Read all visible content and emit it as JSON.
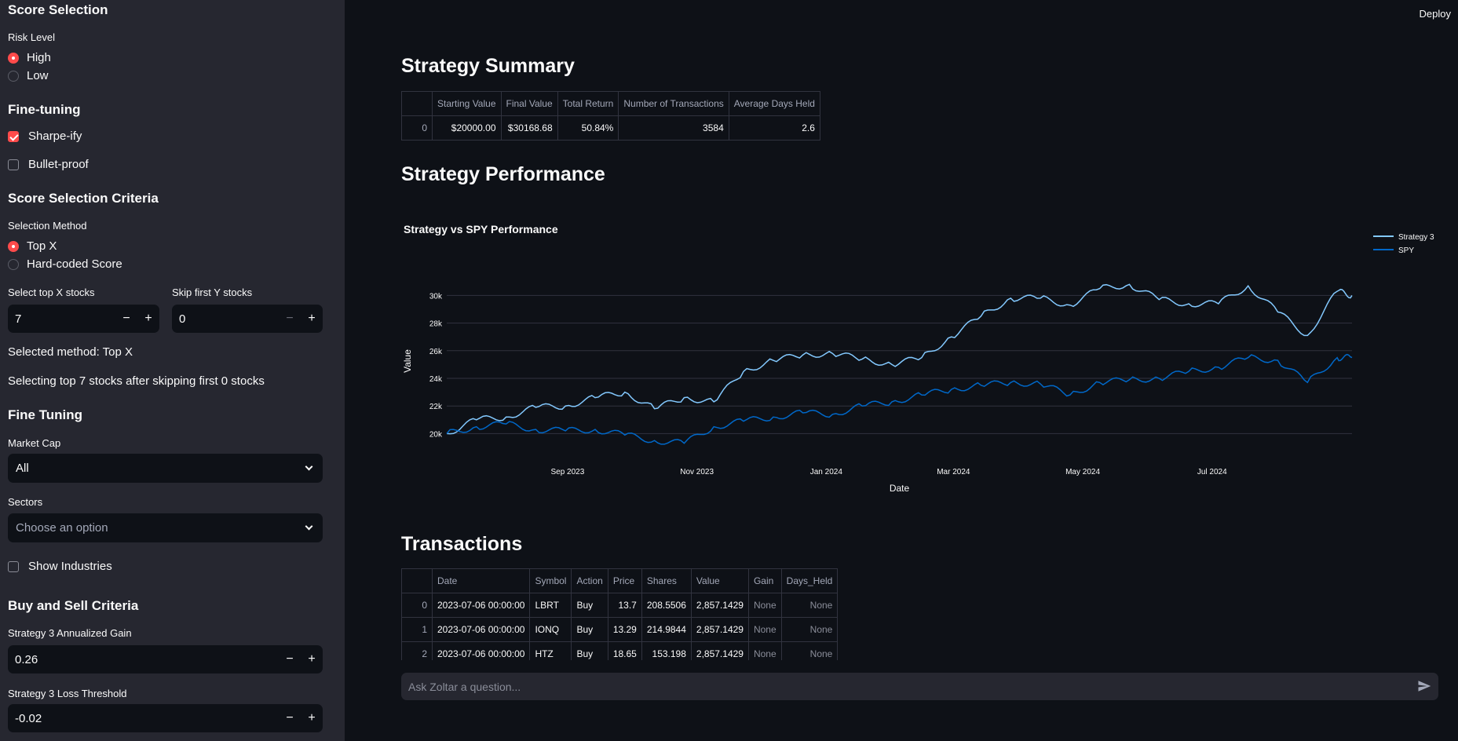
{
  "sidebar": {
    "score_selection_title": "Score Selection",
    "risk_level_label": "Risk Level",
    "risk_options": [
      "High",
      "Low"
    ],
    "fine_tuning_title": "Fine-tuning",
    "sharpeify_label": "Sharpe-ify",
    "bulletproof_label": "Bullet-proof",
    "criteria_title": "Score Selection Criteria",
    "selection_method_label": "Selection Method",
    "method_options": [
      "Top X",
      "Hard-coded Score"
    ],
    "top_x_label": "Select top X stocks",
    "top_x_value": "7",
    "skip_y_label": "Skip first Y stocks",
    "skip_y_value": "0",
    "selected_method_text": "Selected method: Top X",
    "selecting_text": "Selecting top 7 stocks after skipping first 0 stocks",
    "fine_tuning2_title": "Fine Tuning",
    "market_cap_label": "Market Cap",
    "market_cap_value": "All",
    "sectors_label": "Sectors",
    "sectors_placeholder": "Choose an option",
    "show_industries_label": "Show Industries",
    "buy_sell_title": "Buy and Sell Criteria",
    "annualized_gain_label": "Strategy 3 Annualized Gain",
    "annualized_gain_value": "0.26",
    "loss_threshold_label": "Strategy 3 Loss Threshold",
    "loss_threshold_value": "-0.02",
    "minus": "−",
    "plus": "+"
  },
  "header": {
    "deploy_label": "Deploy"
  },
  "summary": {
    "title": "Strategy Summary",
    "columns": [
      "",
      "Starting Value",
      "Final Value",
      "Total Return",
      "Number of Transactions",
      "Average Days Held"
    ],
    "rows": [
      [
        "0",
        "$20000.00",
        "$30168.68",
        "50.84%",
        "3584",
        "2.6"
      ]
    ]
  },
  "performance": {
    "title": "Strategy Performance"
  },
  "chart_data": {
    "type": "line",
    "title": "Strategy vs SPY Performance",
    "xlabel": "Date",
    "ylabel": "Value",
    "x_tick_labels": [
      "Sep 2023",
      "Nov 2023",
      "Jan 2024",
      "Mar 2024",
      "May 2024",
      "Jul 2024"
    ],
    "y_tick_labels": [
      "20k",
      "22k",
      "24k",
      "26k",
      "28k",
      "30k"
    ],
    "y_ticks": [
      20000,
      22000,
      24000,
      26000,
      28000,
      30000
    ],
    "ylim": [
      19000,
      31500
    ],
    "x_range": [
      "2023-07-06",
      "2024-09-05"
    ],
    "legend_position": "top-right",
    "grid": true,
    "series": [
      {
        "name": "Strategy 3",
        "color": "#83c9ff",
        "x": [
          "2023-07-06",
          "2023-07-20",
          "2023-08-03",
          "2023-08-17",
          "2023-08-31",
          "2023-09-14",
          "2023-09-28",
          "2023-10-12",
          "2023-10-26",
          "2023-11-09",
          "2023-11-23",
          "2023-12-07",
          "2023-12-21",
          "2024-01-04",
          "2024-01-18",
          "2024-02-01",
          "2024-02-15",
          "2024-02-29",
          "2024-03-14",
          "2024-03-28",
          "2024-04-11",
          "2024-04-25",
          "2024-05-09",
          "2024-05-23",
          "2024-06-06",
          "2024-06-20",
          "2024-07-04",
          "2024-07-18",
          "2024-08-01",
          "2024-08-15",
          "2024-08-29",
          "2024-09-05"
        ],
        "values": [
          20000,
          21000,
          21200,
          21900,
          22000,
          22600,
          23000,
          21800,
          22600,
          22300,
          24500,
          25300,
          25700,
          25800,
          25400,
          25000,
          25500,
          27000,
          28500,
          29800,
          29800,
          29300,
          30500,
          30800,
          29700,
          29400,
          29400,
          30700,
          28800,
          27100,
          30300,
          30000
        ]
      },
      {
        "name": "SPY",
        "color": "#0068c9",
        "x": [
          "2023-07-06",
          "2023-07-20",
          "2023-08-03",
          "2023-08-17",
          "2023-08-31",
          "2023-09-14",
          "2023-09-28",
          "2023-10-12",
          "2023-10-26",
          "2023-11-09",
          "2023-11-23",
          "2023-12-07",
          "2023-12-21",
          "2024-01-04",
          "2024-01-18",
          "2024-02-01",
          "2024-02-15",
          "2024-02-29",
          "2024-03-14",
          "2024-03-28",
          "2024-04-11",
          "2024-04-25",
          "2024-05-09",
          "2024-05-23",
          "2024-06-06",
          "2024-06-20",
          "2024-07-04",
          "2024-07-18",
          "2024-08-01",
          "2024-08-15",
          "2024-08-29",
          "2024-09-05"
        ],
        "values": [
          20000,
          20500,
          20700,
          20300,
          20200,
          20300,
          19900,
          19500,
          19300,
          20500,
          20900,
          21200,
          21500,
          21400,
          22000,
          22300,
          22800,
          23200,
          23500,
          23700,
          23600,
          22800,
          23700,
          23900,
          24000,
          24500,
          24800,
          25500,
          25300,
          23700,
          25500,
          25500
        ]
      }
    ]
  },
  "transactions": {
    "title": "Transactions",
    "columns": [
      "",
      "Date",
      "Symbol",
      "Action",
      "Price",
      "Shares",
      "Value",
      "Gain",
      "Days_Held"
    ],
    "rows": [
      [
        "0",
        "2023-07-06 00:00:00",
        "LBRT",
        "Buy",
        "13.7",
        "208.5506",
        "2,857.1429",
        "None",
        "None"
      ],
      [
        "1",
        "2023-07-06 00:00:00",
        "IONQ",
        "Buy",
        "13.29",
        "214.9844",
        "2,857.1429",
        "None",
        "None"
      ],
      [
        "2",
        "2023-07-06 00:00:00",
        "HTZ",
        "Buy",
        "18.65",
        "153.198",
        "2,857.1429",
        "None",
        "None"
      ]
    ]
  },
  "chat": {
    "placeholder": "Ask Zoltar a question..."
  },
  "colors": {
    "accent": "#ff4b4b",
    "sidebar_bg": "#262730",
    "main_bg": "#0e1117",
    "strategy_line": "#83c9ff",
    "spy_line": "#0068c9"
  }
}
